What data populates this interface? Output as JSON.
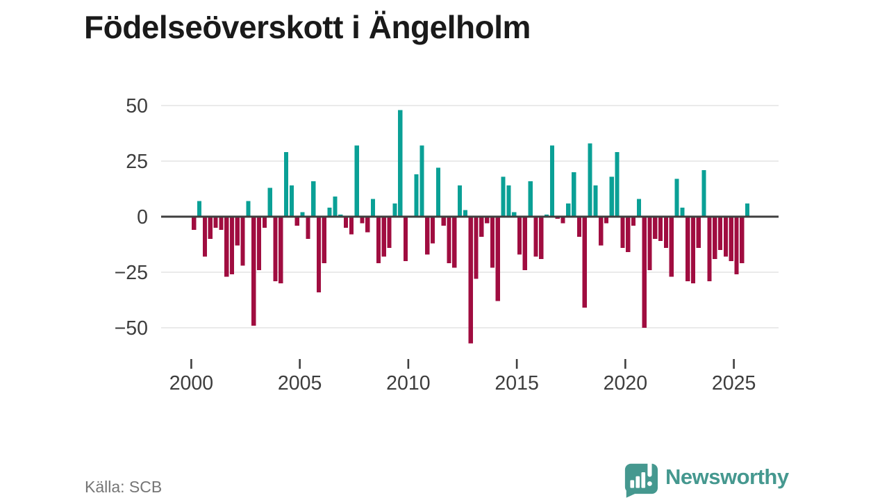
{
  "title": "Födelseöverskott i Ängelholm",
  "source": "Källa: SCB",
  "logo": {
    "text": "Newsworthy",
    "color": "#45988f",
    "icon": "speech-bubble-bar-chart-exclamation"
  },
  "chart_data": {
    "type": "bar",
    "frequency": "quarterly",
    "start_period": "2000 Q1",
    "end_period": "2025 Q3",
    "positive_color": "#0aa096",
    "negative_color": "#a00d40",
    "zero_line_color": "#3f3f3f",
    "grid_color": "#e4e4e4",
    "axis_text_color": "#3d3d3d",
    "grid": true,
    "legend": null,
    "xlabel": "",
    "ylabel": "",
    "ylim": [
      -60,
      55
    ],
    "yticks": [
      50,
      25,
      0,
      -25,
      -50
    ],
    "ytick_labels": [
      "50",
      "25",
      "0",
      "−25",
      "−50"
    ],
    "xticks": [
      2000,
      2005,
      2010,
      2015,
      2020,
      2025
    ],
    "xtick_labels": [
      "2000",
      "2005",
      "2010",
      "2015",
      "2020",
      "2025"
    ],
    "years": [
      {
        "year": 2000,
        "q": [
          -6,
          7,
          -18,
          -10
        ]
      },
      {
        "year": 2001,
        "q": [
          -5,
          -6,
          -27,
          -26
        ]
      },
      {
        "year": 2002,
        "q": [
          -13,
          -22,
          7,
          -49
        ]
      },
      {
        "year": 2003,
        "q": [
          -24,
          -5,
          13,
          -29
        ]
      },
      {
        "year": 2004,
        "q": [
          -30,
          29,
          14,
          -4
        ]
      },
      {
        "year": 2005,
        "q": [
          2,
          -10,
          16,
          -34
        ]
      },
      {
        "year": 2006,
        "q": [
          -21,
          4,
          9,
          1
        ]
      },
      {
        "year": 2007,
        "q": [
          -5,
          -8,
          32,
          -3
        ]
      },
      {
        "year": 2008,
        "q": [
          -7,
          8,
          -21,
          -18
        ]
      },
      {
        "year": 2009,
        "q": [
          -14,
          6,
          48,
          -20
        ]
      },
      {
        "year": 2010,
        "q": [
          0,
          19,
          32,
          -17
        ]
      },
      {
        "year": 2011,
        "q": [
          -12,
          22,
          -4,
          -21
        ]
      },
      {
        "year": 2012,
        "q": [
          -23,
          14,
          3,
          -57
        ]
      },
      {
        "year": 2013,
        "q": [
          -28,
          -9,
          -3,
          -23
        ]
      },
      {
        "year": 2014,
        "q": [
          -38,
          18,
          14,
          2
        ]
      },
      {
        "year": 2015,
        "q": [
          -17,
          -24,
          16,
          -18
        ]
      },
      {
        "year": 2016,
        "q": [
          -19,
          1,
          32,
          -1
        ]
      },
      {
        "year": 2017,
        "q": [
          -3,
          6,
          20,
          -9
        ]
      },
      {
        "year": 2018,
        "q": [
          -41,
          33,
          14,
          -13
        ]
      },
      {
        "year": 2019,
        "q": [
          -3,
          18,
          29,
          -14
        ]
      },
      {
        "year": 2020,
        "q": [
          -16,
          -4,
          8,
          -50
        ]
      },
      {
        "year": 2021,
        "q": [
          -24,
          -10,
          -11,
          -14
        ]
      },
      {
        "year": 2022,
        "q": [
          -27,
          17,
          4,
          -29
        ]
      },
      {
        "year": 2023,
        "q": [
          -30,
          -14,
          21,
          -29
        ]
      },
      {
        "year": 2024,
        "q": [
          -19,
          -15,
          -18,
          -20
        ]
      },
      {
        "year": 2025,
        "q": [
          -26,
          -21,
          6
        ]
      }
    ]
  }
}
